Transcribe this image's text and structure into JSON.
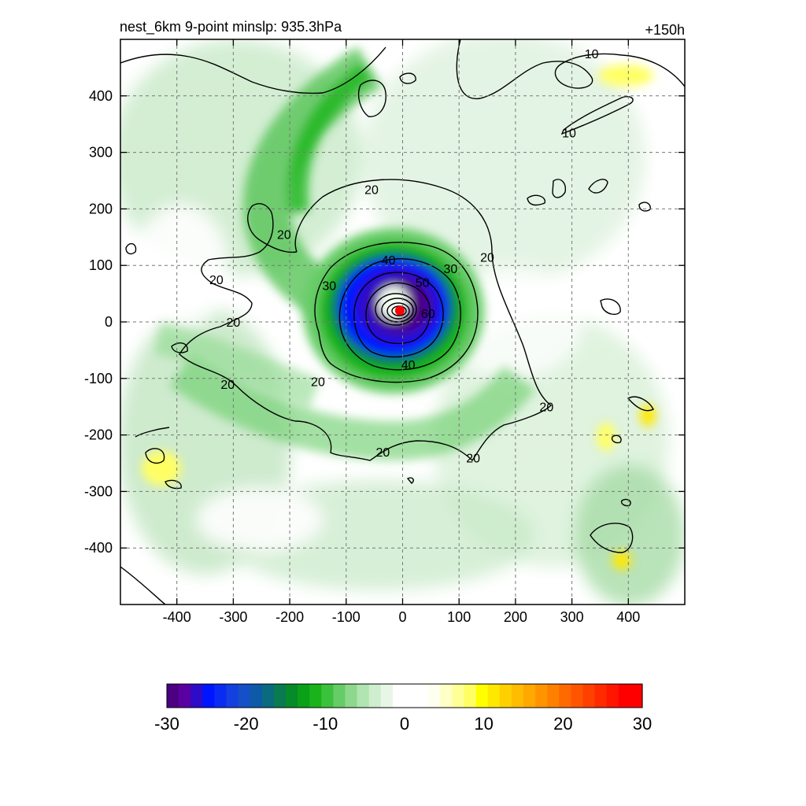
{
  "header": {
    "title_left": "nest_6km  9-point minslp: 935.3hPa",
    "title_right": "+150h"
  },
  "chart_data": {
    "type": "heatmap",
    "title": "nest_6km  9-point minslp: 935.3hPa",
    "valid_time": "+150h",
    "xlabel": "",
    "ylabel": "",
    "xlim": [
      -500,
      500
    ],
    "ylim": [
      -500,
      500
    ],
    "x_ticks": [
      -400,
      -300,
      -200,
      -100,
      0,
      100,
      200,
      300,
      400
    ],
    "y_ticks": [
      -400,
      -300,
      -200,
      -100,
      0,
      100,
      200,
      300,
      400
    ],
    "grid": true,
    "center_marker": {
      "x": -5,
      "y": 20,
      "color": "#ff0000"
    },
    "shading_features": [
      {
        "kind": "core",
        "x": -5,
        "y": 20,
        "value": -30
      },
      {
        "kind": "spiral_band",
        "from_angle_deg": 110,
        "to_angle_deg": 260,
        "radius_range": [
          120,
          320
        ],
        "value": -12
      },
      {
        "kind": "band",
        "x": -40,
        "y": 400,
        "value": -12
      },
      {
        "kind": "band",
        "x": -220,
        "y": -150,
        "value": -8
      },
      {
        "kind": "band",
        "x": 180,
        "y": -200,
        "value": -6
      },
      {
        "kind": "band",
        "x": 360,
        "y": -380,
        "value": -8
      },
      {
        "kind": "positive_patch",
        "x": 400,
        "y": 430,
        "value": 8
      },
      {
        "kind": "positive_patch",
        "x": -440,
        "y": -260,
        "value": 6
      },
      {
        "kind": "positive_patch",
        "x": 360,
        "y": -200,
        "value": 6
      },
      {
        "kind": "positive_patch",
        "x": 430,
        "y": -160,
        "value": 6
      },
      {
        "kind": "positive_patch",
        "x": 390,
        "y": -420,
        "value": 6
      }
    ],
    "contours": [
      {
        "level": 20,
        "label": "20"
      },
      {
        "level": 30,
        "label": "30"
      },
      {
        "level": 40,
        "label": "40"
      },
      {
        "level": 50,
        "label": "50"
      },
      {
        "level": 60,
        "label": "60"
      },
      {
        "level": 10,
        "label": "10"
      }
    ],
    "contour_labels": [
      {
        "text": "10",
        "x": 335,
        "y": 475
      },
      {
        "text": "10",
        "x": 295,
        "y": 335
      },
      {
        "text": "20",
        "x": -55,
        "y": 235
      },
      {
        "text": "20",
        "x": -210,
        "y": 155
      },
      {
        "text": "20",
        "x": 150,
        "y": 115
      },
      {
        "text": "20",
        "x": -330,
        "y": 75
      },
      {
        "text": "20",
        "x": -300,
        "y": 0
      },
      {
        "text": "20",
        "x": -310,
        "y": -110
      },
      {
        "text": "20",
        "x": -150,
        "y": -105
      },
      {
        "text": "20",
        "x": 255,
        "y": -150
      },
      {
        "text": "20",
        "x": -35,
        "y": -230
      },
      {
        "text": "20",
        "x": 125,
        "y": -240
      },
      {
        "text": "30",
        "x": 85,
        "y": 95
      },
      {
        "text": "30",
        "x": -130,
        "y": 65
      },
      {
        "text": "40",
        "x": -25,
        "y": 110
      },
      {
        "text": "40",
        "x": 10,
        "y": -75
      },
      {
        "text": "50",
        "x": 35,
        "y": 70
      },
      {
        "text": "60",
        "x": 45,
        "y": 15
      }
    ]
  },
  "colorbar": {
    "tick_labels": [
      "-30",
      "-20",
      "-10",
      "0",
      "10",
      "20",
      "30"
    ],
    "tick_values": [
      -30,
      -20,
      -10,
      0,
      10,
      20,
      30
    ],
    "colors": [
      "#4b0082",
      "#5a00a0",
      "#2d0bc8",
      "#0015ff",
      "#0a2cf2",
      "#1540e0",
      "#1550c8",
      "#0d5aa8",
      "#0a6a80",
      "#0a7a50",
      "#078a2a",
      "#0aa018",
      "#19b419",
      "#3cc13c",
      "#66cc66",
      "#8dd88d",
      "#b0e4b0",
      "#cfeecf",
      "#e8f6e8",
      "#ffffff",
      "#ffffff",
      "#ffffff",
      "#fffff0",
      "#ffffc8",
      "#ffff96",
      "#ffff64",
      "#ffff00",
      "#ffe800",
      "#ffd000",
      "#ffbc00",
      "#ffa800",
      "#ff9400",
      "#ff8000",
      "#ff6a00",
      "#ff5500",
      "#ff4000",
      "#ff2a00",
      "#ff1500",
      "#ff0000",
      "#ff0000"
    ]
  }
}
